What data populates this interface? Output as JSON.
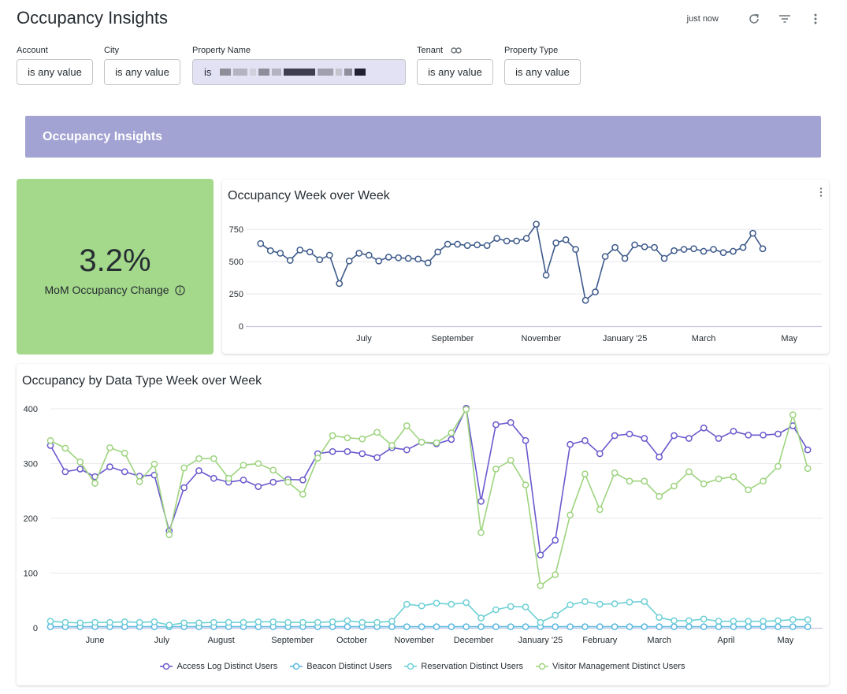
{
  "page": {
    "title": "Occupancy Insights",
    "updated": "just now",
    "icons": [
      "refresh-icon",
      "filter-icon",
      "more-vertical-icon"
    ]
  },
  "filters": [
    {
      "label": "Account",
      "value": "is any value"
    },
    {
      "label": "City",
      "value": "is any value"
    },
    {
      "label": "Property Name",
      "value": "is"
    },
    {
      "label": "Tenant",
      "value": "is any value"
    },
    {
      "label": "Property Type",
      "value": "is any value"
    }
  ],
  "banner": {
    "text": "Occupancy Insights"
  },
  "kpi": {
    "value": "3.2%",
    "label": "MoM Occupancy Change",
    "color": "#a4d88a"
  },
  "colors": {
    "banner": "#a2a3d3",
    "accent_line": "#3d5a8a",
    "grid": "#e8e8ee",
    "axis": "#c9c9e6"
  },
  "chart_data": [
    {
      "type": "line",
      "title": "Occupancy Week over Week",
      "ylim": [
        0,
        800
      ],
      "yticks": [
        0,
        250,
        500,
        750
      ],
      "xlim": [
        -1.5,
        57
      ],
      "xtick_labels": [
        {
          "label": "July",
          "x": 10.5
        },
        {
          "label": "September",
          "x": 19.5
        },
        {
          "label": "November",
          "x": 28.5
        },
        {
          "label": "January '25",
          "x": 37
        },
        {
          "label": "March",
          "x": 45
        },
        {
          "label": "May",
          "x": 53.7
        }
      ],
      "series": [
        {
          "name": "Occupancy",
          "color": "#3d5a8a",
          "values": [
            640,
            585,
            565,
            510,
            590,
            575,
            515,
            550,
            330,
            505,
            565,
            550,
            505,
            535,
            530,
            525,
            520,
            490,
            575,
            635,
            635,
            625,
            630,
            625,
            680,
            660,
            660,
            680,
            790,
            395,
            645,
            670,
            595,
            200,
            265,
            540,
            610,
            525,
            630,
            615,
            610,
            525,
            585,
            595,
            600,
            580,
            595,
            570,
            580,
            610,
            720,
            600
          ]
        }
      ]
    },
    {
      "type": "line",
      "title": "Occupancy by Data Type Week over Week",
      "ylim": [
        0,
        410
      ],
      "yticks": [
        0,
        100,
        200,
        300,
        400
      ],
      "xlim": [
        0,
        52
      ],
      "xtick_labels": [
        {
          "label": "June",
          "x": 3
        },
        {
          "label": "July",
          "x": 7.5
        },
        {
          "label": "August",
          "x": 11.5
        },
        {
          "label": "September",
          "x": 16.3
        },
        {
          "label": "October",
          "x": 20.3
        },
        {
          "label": "November",
          "x": 24.5
        },
        {
          "label": "December",
          "x": 28.5
        },
        {
          "label": "January '25",
          "x": 33
        },
        {
          "label": "February",
          "x": 37
        },
        {
          "label": "March",
          "x": 41
        },
        {
          "label": "April",
          "x": 45.5
        },
        {
          "label": "May",
          "x": 49.5
        }
      ],
      "series": [
        {
          "name": "Access Log Distinct Users",
          "color": "#6a5acd",
          "values": [
            333,
            285,
            290,
            276,
            294,
            285,
            277,
            279,
            177,
            256,
            287,
            273,
            266,
            270,
            258,
            266,
            271,
            270,
            318,
            322,
            322,
            318,
            311,
            329,
            325,
            339,
            336,
            344,
            401,
            231,
            371,
            375,
            342,
            133,
            160,
            335,
            342,
            318,
            351,
            354,
            346,
            312,
            351,
            346,
            365,
            346,
            359,
            352,
            352,
            354,
            369,
            325
          ]
        },
        {
          "name": "Beacon Distinct Users",
          "color": "#5bb8e0",
          "values": [
            2,
            2,
            2,
            2,
            2,
            2,
            2,
            2,
            2,
            2,
            2,
            2,
            2,
            2,
            2,
            2,
            2,
            2,
            2,
            2,
            2,
            2,
            2,
            2,
            2,
            2,
            2,
            2,
            2,
            2,
            2,
            2,
            2,
            2,
            2,
            2,
            2,
            2,
            2,
            2,
            2,
            2,
            2,
            2,
            2,
            2,
            2,
            2,
            2,
            2,
            2,
            2
          ]
        },
        {
          "name": "Reservation Distinct Users",
          "color": "#6ed0d5",
          "values": [
            12,
            10,
            9,
            10,
            10,
            11,
            10,
            11,
            5,
            9,
            9,
            10,
            10,
            10,
            11,
            11,
            10,
            10,
            10,
            11,
            13,
            10,
            10,
            12,
            43,
            40,
            45,
            43,
            46,
            18,
            33,
            39,
            38,
            10,
            23,
            42,
            48,
            43,
            44,
            47,
            48,
            19,
            13,
            13,
            16,
            12,
            12,
            12,
            12,
            13,
            15,
            15
          ]
        },
        {
          "name": "Visitor Management Distinct Users",
          "color": "#9ed47f",
          "values": [
            342,
            328,
            303,
            264,
            329,
            319,
            267,
            299,
            170,
            292,
            309,
            309,
            273,
            297,
            300,
            288,
            266,
            244,
            310,
            351,
            347,
            345,
            357,
            333,
            369,
            339,
            338,
            356,
            399,
            174,
            290,
            306,
            261,
            77,
            97,
            206,
            281,
            216,
            283,
            268,
            268,
            240,
            259,
            285,
            263,
            272,
            276,
            252,
            268,
            295,
            389,
            291
          ]
        }
      ]
    }
  ]
}
